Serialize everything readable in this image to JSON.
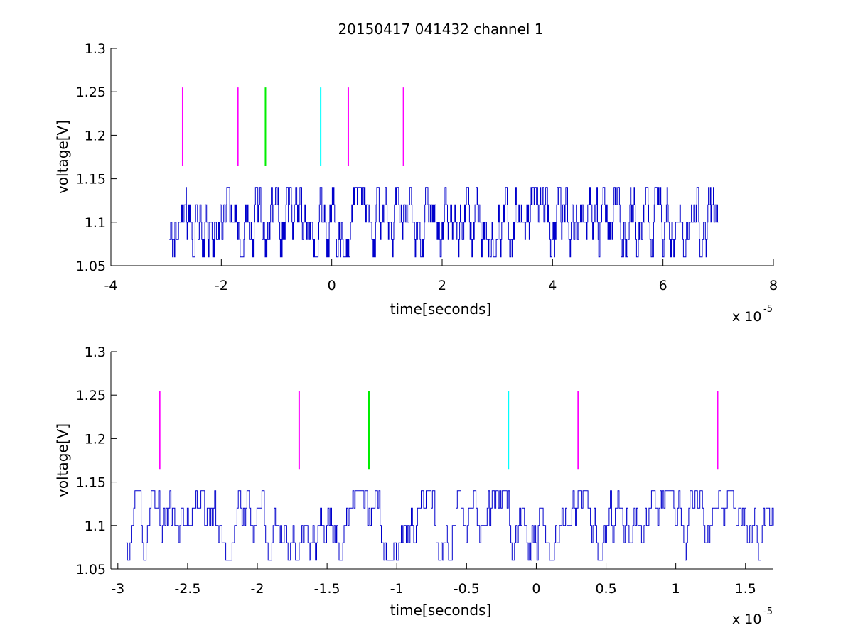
{
  "title": "20150417 041432 channel 1",
  "colors": {
    "signal": "#0000cc",
    "magenta": "#ff00ff",
    "green": "#00ee00",
    "cyan": "#00ffff",
    "axis": "#000000",
    "background": "#ffffff"
  },
  "chart_data": [
    {
      "type": "line",
      "title": "20150417 041432 channel 1",
      "xlabel": "time[seconds]",
      "ylabel": "voltage[V]",
      "x_multiplier_label": "x 10",
      "x_multiplier_exponent": "-5",
      "xlim": [
        -4e-05,
        8e-05
      ],
      "ylim": [
        1.05,
        1.3
      ],
      "x_ticks": [
        -4e-05,
        -2e-05,
        0,
        2e-05,
        4e-05,
        6e-05,
        8e-05
      ],
      "x_tick_labels": [
        "-4",
        "-2",
        "0",
        "2",
        "4",
        "6",
        "8"
      ],
      "y_ticks": [
        1.05,
        1.1,
        1.15,
        1.2,
        1.25,
        1.3
      ],
      "y_tick_labels": [
        "1.05",
        "1.1",
        "1.15",
        "1.2",
        "1.25",
        "1.3"
      ],
      "grid": false,
      "signal": {
        "x_start": -2.94e-05,
        "x_end": 7e-05,
        "levels": [
          1.06,
          1.08,
          1.1,
          1.12,
          1.14
        ],
        "baseline": 1.1
      },
      "markers": [
        {
          "x": -2.7e-05,
          "y_range": [
            1.165,
            1.255
          ],
          "color": "magenta"
        },
        {
          "x": -1.7e-05,
          "y_range": [
            1.165,
            1.255
          ],
          "color": "magenta"
        },
        {
          "x": -1.2e-05,
          "y_range": [
            1.165,
            1.255
          ],
          "color": "green"
        },
        {
          "x": -2e-06,
          "y_range": [
            1.165,
            1.255
          ],
          "color": "cyan"
        },
        {
          "x": 3e-06,
          "y_range": [
            1.165,
            1.255
          ],
          "color": "magenta"
        },
        {
          "x": 1.3e-05,
          "y_range": [
            1.165,
            1.255
          ],
          "color": "magenta"
        }
      ]
    },
    {
      "type": "line",
      "title": "",
      "xlabel": "time[seconds]",
      "ylabel": "voltage[V]",
      "x_multiplier_label": "x 10",
      "x_multiplier_exponent": "-5",
      "xlim": [
        -3.05e-05,
        1.7e-05
      ],
      "ylim": [
        1.05,
        1.3
      ],
      "x_ticks": [
        -3e-05,
        -2.5e-05,
        -2e-05,
        -1.5e-05,
        -1e-05,
        -5e-06,
        0,
        5e-06,
        1e-05,
        1.5e-05
      ],
      "x_tick_labels": [
        "-3",
        "-2.5",
        "-2",
        "-1.5",
        "-1",
        "-0.5",
        "0",
        "0.5",
        "1",
        "1.5"
      ],
      "y_ticks": [
        1.05,
        1.1,
        1.15,
        1.2,
        1.25,
        1.3
      ],
      "y_tick_labels": [
        "1.05",
        "1.1",
        "1.15",
        "1.2",
        "1.25",
        "1.3"
      ],
      "grid": false,
      "signal": {
        "x_start": -2.94e-05,
        "x_end": 1.7e-05,
        "levels": [
          1.06,
          1.08,
          1.1,
          1.12,
          1.14
        ],
        "baseline": 1.1
      },
      "markers": [
        {
          "x": -2.7e-05,
          "y_range": [
            1.165,
            1.255
          ],
          "color": "magenta"
        },
        {
          "x": -1.7e-05,
          "y_range": [
            1.165,
            1.255
          ],
          "color": "magenta"
        },
        {
          "x": -1.2e-05,
          "y_range": [
            1.165,
            1.255
          ],
          "color": "green"
        },
        {
          "x": -2e-06,
          "y_range": [
            1.165,
            1.255
          ],
          "color": "cyan"
        },
        {
          "x": 3e-06,
          "y_range": [
            1.165,
            1.255
          ],
          "color": "magenta"
        },
        {
          "x": 1.3e-05,
          "y_range": [
            1.165,
            1.255
          ],
          "color": "magenta"
        }
      ]
    }
  ]
}
